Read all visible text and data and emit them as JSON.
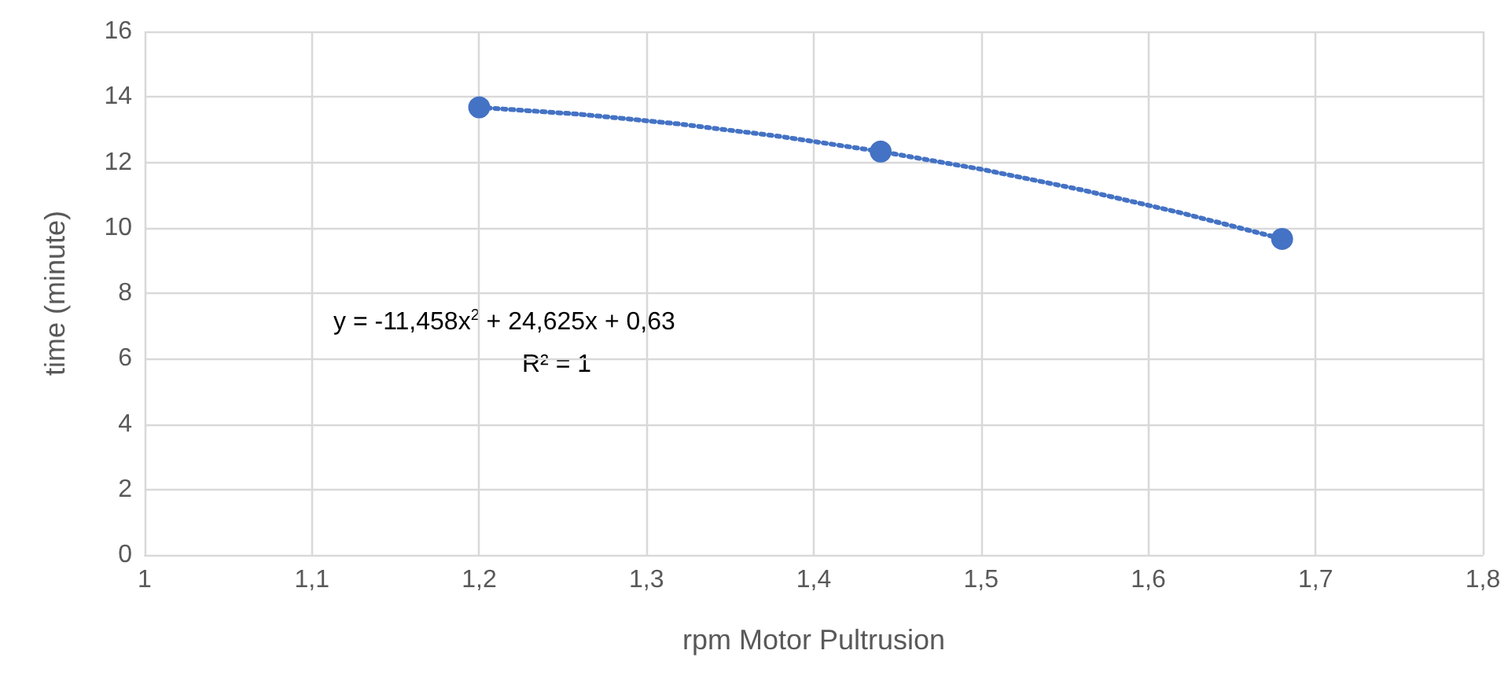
{
  "chart_data": {
    "type": "scatter",
    "xlabel": "rpm Motor Pultrusion",
    "ylabel": "time (minute)",
    "x": [
      1.2,
      1.44,
      1.68
    ],
    "series": [
      {
        "color": "#4472c4",
        "values": [
          13.68,
          12.33,
          9.66
        ],
        "marker": "circle"
      },
      {
        "type": "line",
        "color": "#4472c4",
        "line_style": "dotted",
        "marker": "none",
        "x": [
          1.2,
          1.26,
          1.32,
          1.38,
          1.44,
          1.5,
          1.56,
          1.62,
          1.68
        ],
        "values": [
          13.68,
          13.47,
          13.17,
          12.79,
          12.33,
          11.79,
          11.16,
          10.45,
          9.66
        ]
      }
    ],
    "xlim": [
      1,
      1.8
    ],
    "xticks": [
      1,
      {
        "value": 1.1,
        "label": "1,1"
      },
      {
        "value": 1.2,
        "label": "1,2"
      },
      {
        "value": 1.3,
        "label": "1,3"
      },
      {
        "value": 1.4,
        "label": "1,4"
      },
      {
        "value": 1.5,
        "label": "1,5"
      },
      {
        "value": 1.6,
        "label": "1,6"
      },
      {
        "value": 1.7,
        "label": "1,7"
      },
      {
        "value": 1.8,
        "label": "1,8"
      }
    ],
    "ylim": [
      0,
      16
    ],
    "yticks": [
      0,
      2,
      4,
      6,
      8,
      10,
      12,
      14,
      16
    ],
    "grid": true,
    "annotations": [
      "y = -11,458x$^{2}$ + 24,625x + 0,63",
      "R² = 1"
    ]
  }
}
